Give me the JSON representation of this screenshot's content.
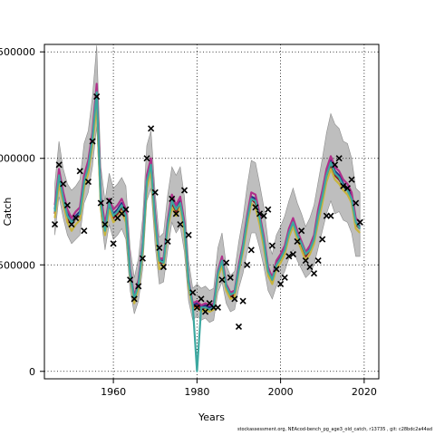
{
  "footer_text": "stockassessment.org, NEAcod-bench_pg_age3_old_catch, r13735 , git: c28bdc2a44ad",
  "chart_data": {
    "type": "line",
    "title": "",
    "xlabel": "Years",
    "ylabel": "Catch",
    "xlim": [
      1943.5,
      2023.5
    ],
    "ylim": [
      -35000,
      1535000
    ],
    "grid": true,
    "grid_style": "dotted",
    "x_ticks": [
      1960,
      1980,
      2000,
      2020
    ],
    "y_ticks": [
      0,
      500000,
      1000000,
      1500000
    ],
    "y_tick_labels": [
      "0",
      "500000",
      "1000000",
      "1500000"
    ],
    "band_color": "#bebebe",
    "observed_marker": "x",
    "observed_color": "#000000",
    "years": [
      1946,
      1947,
      1948,
      1949,
      1950,
      1951,
      1952,
      1953,
      1954,
      1955,
      1956,
      1957,
      1958,
      1959,
      1960,
      1961,
      1962,
      1963,
      1964,
      1965,
      1966,
      1967,
      1968,
      1969,
      1970,
      1971,
      1972,
      1973,
      1974,
      1975,
      1976,
      1977,
      1978,
      1979,
      1980,
      1981,
      1982,
      1983,
      1984,
      1985,
      1986,
      1987,
      1988,
      1989,
      1990,
      1991,
      1992,
      1993,
      1994,
      1995,
      1996,
      1997,
      1998,
      1999,
      2000,
      2001,
      2002,
      2003,
      2004,
      2005,
      2006,
      2007,
      2008,
      2009,
      2010,
      2011,
      2012,
      2013,
      2014,
      2015,
      2016,
      2017,
      2018,
      2019
    ],
    "band_lower": [
      640000,
      820000,
      720000,
      640000,
      600000,
      620000,
      640000,
      790000,
      840000,
      960000,
      1150000,
      730000,
      570000,
      690000,
      620000,
      640000,
      670000,
      620000,
      380000,
      270000,
      330000,
      480000,
      800000,
      860000,
      590000,
      410000,
      420000,
      570000,
      700000,
      650000,
      680000,
      560000,
      330000,
      240000,
      260000,
      240000,
      250000,
      230000,
      240000,
      370000,
      420000,
      320000,
      280000,
      290000,
      390000,
      460000,
      560000,
      650000,
      650000,
      580000,
      490000,
      380000,
      340000,
      400000,
      430000,
      470000,
      530000,
      570000,
      520000,
      480000,
      440000,
      460000,
      500000,
      580000,
      660000,
      740000,
      800000,
      740000,
      750000,
      710000,
      700000,
      650000,
      540000,
      540000
    ],
    "band_upper": [
      880000,
      1080000,
      950000,
      880000,
      850000,
      870000,
      900000,
      1070000,
      1130000,
      1290000,
      1530000,
      960000,
      800000,
      930000,
      860000,
      880000,
      910000,
      870000,
      580000,
      440000,
      530000,
      720000,
      1060000,
      1130000,
      840000,
      630000,
      650000,
      830000,
      960000,
      920000,
      960000,
      820000,
      520000,
      390000,
      410000,
      390000,
      400000,
      380000,
      390000,
      580000,
      650000,
      500000,
      450000,
      470000,
      610000,
      720000,
      870000,
      990000,
      980000,
      880000,
      770000,
      610000,
      550000,
      640000,
      680000,
      730000,
      800000,
      860000,
      790000,
      740000,
      680000,
      720000,
      780000,
      890000,
      1000000,
      1120000,
      1210000,
      1160000,
      1140000,
      1080000,
      1070000,
      1000000,
      860000,
      840000
    ],
    "series": [
      {
        "color": "#2b2b86",
        "values": [
          760000,
          930000,
          820000,
          740000,
          700000,
          730000,
          750000,
          900000,
          970000,
          1100000,
          1300000,
          800000,
          670000,
          790000,
          740000,
          760000,
          790000,
          740000,
          470000,
          340000,
          420000,
          590000,
          900000,
          990000,
          720000,
          520000,
          520000,
          700000,
          810000,
          760000,
          800000,
          680000,
          420000,
          310000,
          320000,
          300000,
          310000,
          300000,
          310000,
          460000,
          530000,
          400000,
          360000,
          370000,
          490000,
          590000,
          720000,
          820000,
          810000,
          730000,
          620000,
          480000,
          430000,
          510000,
          540000,
          580000,
          660000,
          710000,
          650000,
          600000,
          550000,
          580000,
          630000,
          740000,
          830000,
          930000,
          990000,
          940000,
          920000,
          880000,
          860000,
          820000,
          700000,
          680000
        ]
      },
      {
        "color": "#8b1a1a",
        "values": [
          740000,
          910000,
          800000,
          720000,
          690000,
          720000,
          730000,
          880000,
          950000,
          1080000,
          1290000,
          780000,
          650000,
          780000,
          720000,
          740000,
          770000,
          720000,
          460000,
          330000,
          410000,
          580000,
          880000,
          960000,
          700000,
          510000,
          510000,
          690000,
          790000,
          750000,
          790000,
          670000,
          410000,
          300000,
          310000,
          290000,
          300000,
          290000,
          300000,
          450000,
          520000,
          390000,
          350000,
          360000,
          480000,
          580000,
          700000,
          810000,
          790000,
          710000,
          600000,
          470000,
          420000,
          500000,
          530000,
          570000,
          650000,
          700000,
          640000,
          590000,
          540000,
          570000,
          620000,
          720000,
          810000,
          910000,
          970000,
          920000,
          900000,
          870000,
          850000,
          810000,
          690000,
          670000
        ]
      },
      {
        "color": "#b0308a",
        "values": [
          780000,
          950000,
          840000,
          760000,
          720000,
          750000,
          770000,
          920000,
          990000,
          1120000,
          1350000,
          820000,
          690000,
          810000,
          760000,
          780000,
          810000,
          760000,
          480000,
          350000,
          430000,
          600000,
          920000,
          1000000,
          740000,
          530000,
          530000,
          710000,
          830000,
          780000,
          820000,
          700000,
          430000,
          320000,
          330000,
          310000,
          320000,
          310000,
          320000,
          470000,
          540000,
          410000,
          370000,
          380000,
          500000,
          600000,
          730000,
          840000,
          830000,
          740000,
          630000,
          490000,
          440000,
          520000,
          550000,
          590000,
          670000,
          720000,
          660000,
          610000,
          560000,
          590000,
          640000,
          760000,
          850000,
          950000,
          1010000,
          960000,
          940000,
          900000,
          880000,
          840000,
          720000,
          700000
        ]
      },
      {
        "color": "#c8b43c",
        "values": [
          720000,
          880000,
          790000,
          700000,
          660000,
          690000,
          710000,
          860000,
          930000,
          1060000,
          1250000,
          760000,
          640000,
          760000,
          700000,
          720000,
          750000,
          700000,
          450000,
          320000,
          390000,
          560000,
          860000,
          940000,
          680000,
          480000,
          490000,
          670000,
          770000,
          730000,
          770000,
          650000,
          400000,
          290000,
          300000,
          280000,
          290000,
          280000,
          290000,
          440000,
          500000,
          380000,
          340000,
          350000,
          470000,
          560000,
          680000,
          790000,
          770000,
          690000,
          580000,
          450000,
          410000,
          480000,
          510000,
          550000,
          630000,
          680000,
          620000,
          570000,
          520000,
          550000,
          600000,
          700000,
          790000,
          890000,
          950000,
          900000,
          880000,
          850000,
          830000,
          790000,
          670000,
          650000
        ]
      },
      {
        "color": "#3ca8a0",
        "values": [
          750000,
          920000,
          810000,
          730000,
          700000,
          720000,
          740000,
          890000,
          960000,
          1090000,
          1310000,
          790000,
          660000,
          790000,
          730000,
          750000,
          780000,
          730000,
          460000,
          340000,
          410000,
          580000,
          890000,
          970000,
          710000,
          520000,
          510000,
          690000,
          800000,
          760000,
          790000,
          680000,
          420000,
          310000,
          320,
          300000,
          300000,
          290000,
          300000,
          460000,
          520000,
          400000,
          360000,
          370000,
          480000,
          580000,
          710000,
          810000,
          800000,
          720000,
          610000,
          470000,
          430000,
          500000,
          530000,
          570000,
          650000,
          700000,
          640000,
          600000,
          550000,
          570000,
          620000,
          730000,
          820000,
          920000,
          980000,
          930000,
          910000,
          870000,
          850000,
          810000,
          700000,
          670000
        ]
      }
    ],
    "observed": [
      {
        "x": 1946,
        "y": 690000
      },
      {
        "x": 1947,
        "y": 970000
      },
      {
        "x": 1948,
        "y": 880000
      },
      {
        "x": 1949,
        "y": 780000
      },
      {
        "x": 1950,
        "y": 690000
      },
      {
        "x": 1951,
        "y": 720000
      },
      {
        "x": 1952,
        "y": 940000
      },
      {
        "x": 1953,
        "y": 660000
      },
      {
        "x": 1954,
        "y": 890000
      },
      {
        "x": 1955,
        "y": 1080000
      },
      {
        "x": 1956,
        "y": 1290000
      },
      {
        "x": 1957,
        "y": 790000
      },
      {
        "x": 1958,
        "y": 690000
      },
      {
        "x": 1959,
        "y": 800000
      },
      {
        "x": 1960,
        "y": 600000
      },
      {
        "x": 1961,
        "y": 720000
      },
      {
        "x": 1962,
        "y": 740000
      },
      {
        "x": 1963,
        "y": 760000
      },
      {
        "x": 1964,
        "y": 430000
      },
      {
        "x": 1965,
        "y": 340000
      },
      {
        "x": 1966,
        "y": 400000
      },
      {
        "x": 1967,
        "y": 530000
      },
      {
        "x": 1968,
        "y": 1000000
      },
      {
        "x": 1969,
        "y": 1140000
      },
      {
        "x": 1970,
        "y": 840000
      },
      {
        "x": 1971,
        "y": 580000
      },
      {
        "x": 1972,
        "y": 490000
      },
      {
        "x": 1973,
        "y": 610000
      },
      {
        "x": 1974,
        "y": 810000
      },
      {
        "x": 1975,
        "y": 740000
      },
      {
        "x": 1976,
        "y": 690000
      },
      {
        "x": 1977,
        "y": 850000
      },
      {
        "x": 1978,
        "y": 640000
      },
      {
        "x": 1979,
        "y": 370000
      },
      {
        "x": 1980,
        "y": 300000
      },
      {
        "x": 1981,
        "y": 340000
      },
      {
        "x": 1982,
        "y": 280000
      },
      {
        "x": 1983,
        "y": 320000
      },
      {
        "x": 1984,
        "y": 300000
      },
      {
        "x": 1985,
        "y": 300000
      },
      {
        "x": 1986,
        "y": 430000
      },
      {
        "x": 1987,
        "y": 510000
      },
      {
        "x": 1988,
        "y": 440000
      },
      {
        "x": 1989,
        "y": 340000
      },
      {
        "x": 1990,
        "y": 210000
      },
      {
        "x": 1991,
        "y": 330000
      },
      {
        "x": 1992,
        "y": 500000
      },
      {
        "x": 1993,
        "y": 570000
      },
      {
        "x": 1994,
        "y": 770000
      },
      {
        "x": 1995,
        "y": 740000
      },
      {
        "x": 1996,
        "y": 730000
      },
      {
        "x": 1997,
        "y": 760000
      },
      {
        "x": 1998,
        "y": 590000
      },
      {
        "x": 1999,
        "y": 480000
      },
      {
        "x": 2000,
        "y": 410000
      },
      {
        "x": 2001,
        "y": 440000
      },
      {
        "x": 2002,
        "y": 540000
      },
      {
        "x": 2003,
        "y": 550000
      },
      {
        "x": 2004,
        "y": 610000
      },
      {
        "x": 2005,
        "y": 660000
      },
      {
        "x": 2006,
        "y": 520000
      },
      {
        "x": 2007,
        "y": 490000
      },
      {
        "x": 2008,
        "y": 460000
      },
      {
        "x": 2009,
        "y": 520000
      },
      {
        "x": 2010,
        "y": 620000
      },
      {
        "x": 2011,
        "y": 730000
      },
      {
        "x": 2012,
        "y": 730000
      },
      {
        "x": 2013,
        "y": 970000
      },
      {
        "x": 2014,
        "y": 1000000
      },
      {
        "x": 2015,
        "y": 870000
      },
      {
        "x": 2016,
        "y": 860000
      },
      {
        "x": 2017,
        "y": 900000
      },
      {
        "x": 2018,
        "y": 790000
      },
      {
        "x": 2019,
        "y": 700000
      }
    ]
  }
}
